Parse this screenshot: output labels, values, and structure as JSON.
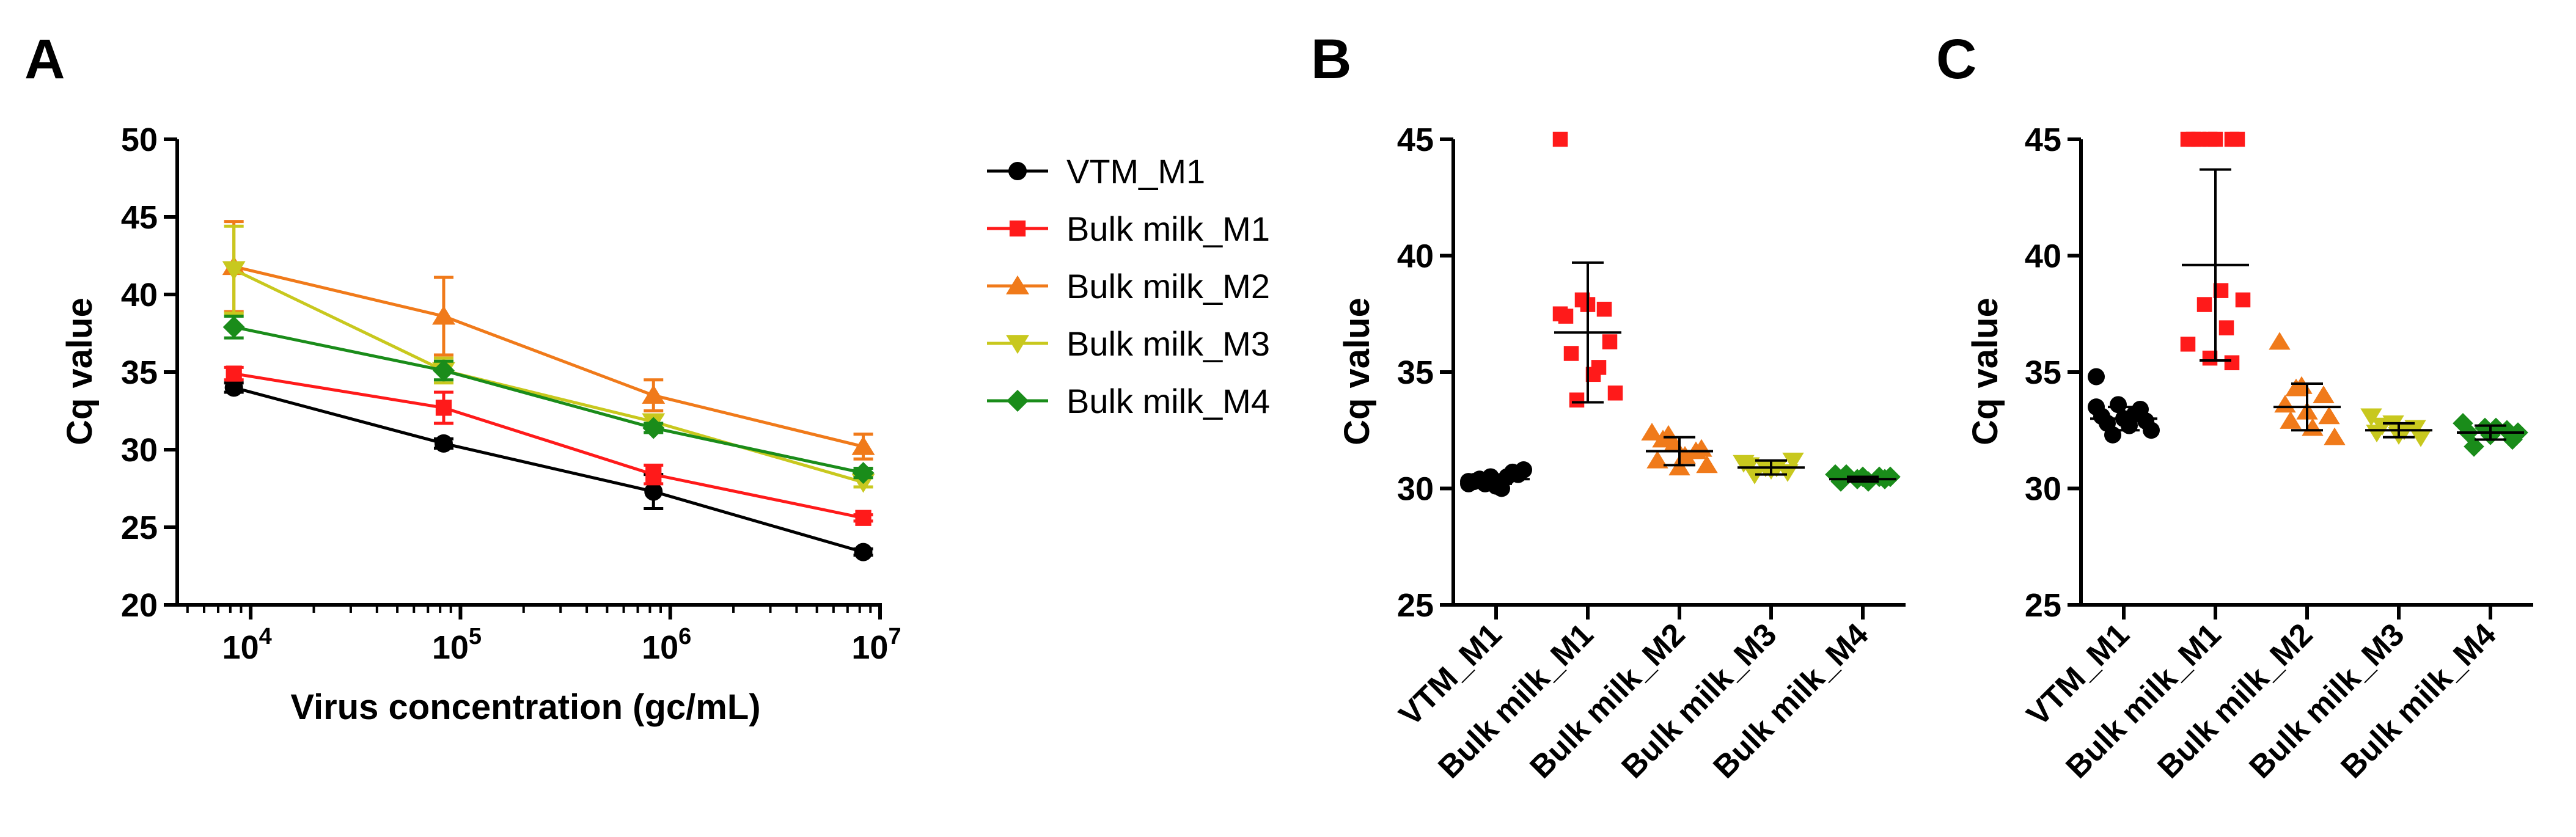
{
  "colors": {
    "VTM_M1": "#000000",
    "Bulk milk_M1": "#ff1a1a",
    "Bulk milk_M2": "#f07a1a",
    "Bulk milk_M3": "#c8c81e",
    "Bulk milk_M4": "#1a8c1a"
  },
  "marker_shapes": {
    "VTM_M1": "circle",
    "Bulk milk_M1": "square",
    "Bulk milk_M2": "triangle-up",
    "Bulk milk_M3": "triangle-down",
    "Bulk milk_M4": "diamond"
  },
  "panels": {
    "A": {
      "label": "A"
    },
    "B": {
      "label": "B"
    },
    "C": {
      "label": "C"
    }
  },
  "chart_data": [
    {
      "panel": "A",
      "type": "line",
      "xscale": "log",
      "xlabel": "Virus concentration (gc/mL)",
      "ylabel": "Cq value",
      "xlim_log10": [
        3.65,
        7.0
      ],
      "ylim": [
        20,
        50
      ],
      "ytick_labels": [
        "20",
        "25",
        "30",
        "35",
        "40",
        "45",
        "50"
      ],
      "xtick_labels": [
        {
          "base": "10",
          "exp": "4"
        },
        {
          "base": "10",
          "exp": "5"
        },
        {
          "base": "10",
          "exp": "6"
        },
        {
          "base": "10",
          "exp": "7"
        }
      ],
      "x_log10": [
        3.92,
        4.92,
        5.92,
        6.92
      ],
      "legend": [
        "VTM_M1",
        "Bulk milk_M1",
        "Bulk milk_M2",
        "Bulk milk_M3",
        "Bulk milk_M4"
      ],
      "series": [
        {
          "name": "VTM_M1",
          "values": [
            34.0,
            30.4,
            27.3,
            23.4
          ],
          "errors": [
            0.3,
            0.3,
            1.1,
            0.2
          ]
        },
        {
          "name": "Bulk milk_M1",
          "values": [
            34.9,
            32.7,
            28.4,
            25.6
          ],
          "errors": [
            0.4,
            1.0,
            0.6,
            0.2
          ]
        },
        {
          "name": "Bulk milk_M2",
          "values": [
            41.8,
            38.6,
            33.5,
            30.2
          ],
          "errors": [
            2.9,
            2.5,
            1.0,
            0.8
          ]
        },
        {
          "name": "Bulk milk_M3",
          "values": [
            41.6,
            35.1,
            31.8,
            27.9
          ],
          "errors": [
            2.8,
            0.8,
            0.4,
            0.3
          ]
        },
        {
          "name": "Bulk milk_M4",
          "values": [
            37.9,
            35.1,
            31.4,
            28.5
          ],
          "errors": [
            0.7,
            0.6,
            0.3,
            0.3
          ]
        }
      ]
    },
    {
      "panel": "B",
      "type": "scatter",
      "ylabel": "Cq value",
      "ylim": [
        25,
        45
      ],
      "ytick_labels": [
        "25",
        "30",
        "35",
        "40",
        "45"
      ],
      "categories": [
        "VTM_M1",
        "Bulk milk_M1",
        "Bulk milk_M2",
        "Bulk milk_M3",
        "Bulk milk_M4"
      ],
      "means": [
        30.4,
        36.7,
        31.6,
        30.9,
        30.4
      ],
      "sd": [
        0.2,
        3.0,
        0.6,
        0.3,
        0.1
      ],
      "points": [
        [
          30.2,
          30.5,
          30.7,
          30.3,
          30.1,
          30.6,
          30.4,
          30.0,
          30.8,
          30.2,
          30.5,
          30.3
        ],
        [
          45.0,
          38.1,
          37.7,
          37.4,
          37.9,
          36.3,
          35.8,
          34.9,
          34.1,
          33.8,
          35.2,
          37.5
        ],
        [
          32.4,
          31.9,
          31.6,
          31.2,
          30.9,
          31.7,
          32.1,
          31.4,
          31.0,
          32.3
        ],
        [
          31.1,
          30.9,
          30.7,
          31.0,
          30.8,
          31.2,
          30.6,
          30.9
        ],
        [
          30.6,
          30.4,
          30.5,
          30.3,
          30.5,
          30.4,
          30.6,
          30.3,
          30.5
        ]
      ]
    },
    {
      "panel": "C",
      "type": "scatter",
      "ylabel": "Cq value",
      "ylim": [
        25,
        45
      ],
      "ytick_labels": [
        "25",
        "30",
        "35",
        "40",
        "45"
      ],
      "categories": [
        "VTM_M1",
        "Bulk milk_M1",
        "Bulk milk_M2",
        "Bulk milk_M3",
        "Bulk milk_M4"
      ],
      "means": [
        33.0,
        39.6,
        33.5,
        32.5,
        32.4
      ],
      "sd": [
        0.5,
        4.1,
        1.0,
        0.3,
        0.3
      ],
      "points": [
        [
          34.8,
          33.6,
          33.4,
          33.1,
          33.0,
          32.9,
          32.8,
          32.7,
          32.5,
          32.3,
          33.2,
          33.5
        ],
        [
          45.0,
          45.0,
          45.0,
          45.0,
          45.0,
          45.0,
          45.0,
          38.5,
          38.1,
          37.9,
          36.9,
          36.2,
          35.6,
          35.4
        ],
        [
          36.3,
          34.4,
          34.0,
          33.6,
          33.3,
          33.1,
          32.9,
          32.6,
          32.2,
          34.3
        ],
        [
          33.1,
          32.8,
          32.6,
          32.4,
          32.3,
          32.2,
          32.7,
          32.5
        ],
        [
          32.8,
          32.6,
          32.5,
          32.4,
          32.3,
          32.1,
          31.8,
          32.6,
          32.4
        ]
      ]
    }
  ]
}
